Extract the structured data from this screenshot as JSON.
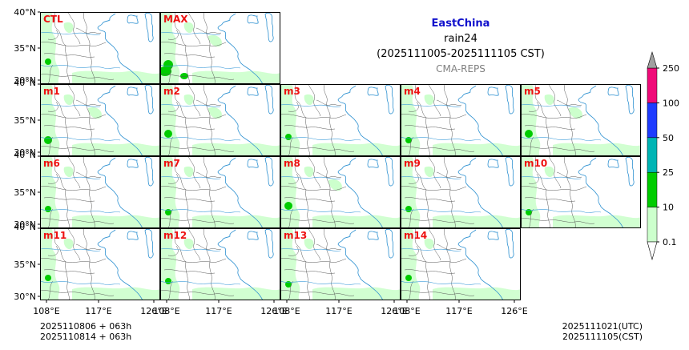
{
  "title": {
    "region": "EastChina",
    "variable": "rain24",
    "period": "(2025111005-2025111105 CST)",
    "model": "CMA-REPS"
  },
  "panels": [
    {
      "label": "CTL",
      "intensity": 1
    },
    {
      "label": "MAX",
      "intensity": 3
    },
    {
      "label": "m1",
      "intensity": 2
    },
    {
      "label": "m2",
      "intensity": 2
    },
    {
      "label": "m3",
      "intensity": 1
    },
    {
      "label": "m4",
      "intensity": 1
    },
    {
      "label": "m5",
      "intensity": 2
    },
    {
      "label": "m6",
      "intensity": 1
    },
    {
      "label": "m7",
      "intensity": 1
    },
    {
      "label": "m8",
      "intensity": 2
    },
    {
      "label": "m9",
      "intensity": 1
    },
    {
      "label": "m10",
      "intensity": 1
    },
    {
      "label": "m11",
      "intensity": 1
    },
    {
      "label": "m12",
      "intensity": 1
    },
    {
      "label": "m13",
      "intensity": 1
    },
    {
      "label": "m14",
      "intensity": 1
    }
  ],
  "axes": {
    "lat_ticks": [
      "40°N",
      "35°N",
      "30°N"
    ],
    "lon_ticks": [
      "108°E",
      "117°E",
      "126°E"
    ]
  },
  "colorbar": {
    "levels": [
      "0.1",
      "10",
      "25",
      "50",
      "100",
      "250"
    ],
    "colors": [
      "#ccffcc",
      "#00cc00",
      "#00b4b4",
      "#1e3cff",
      "#f00a78",
      "#a0a0a0"
    ]
  },
  "footer": {
    "init_utc": "2025110806  +  063h",
    "init_cst": "2025110814  +  063h",
    "valid_utc": "2025111021(UTC)",
    "valid_cst": "2025111105(CST)"
  }
}
